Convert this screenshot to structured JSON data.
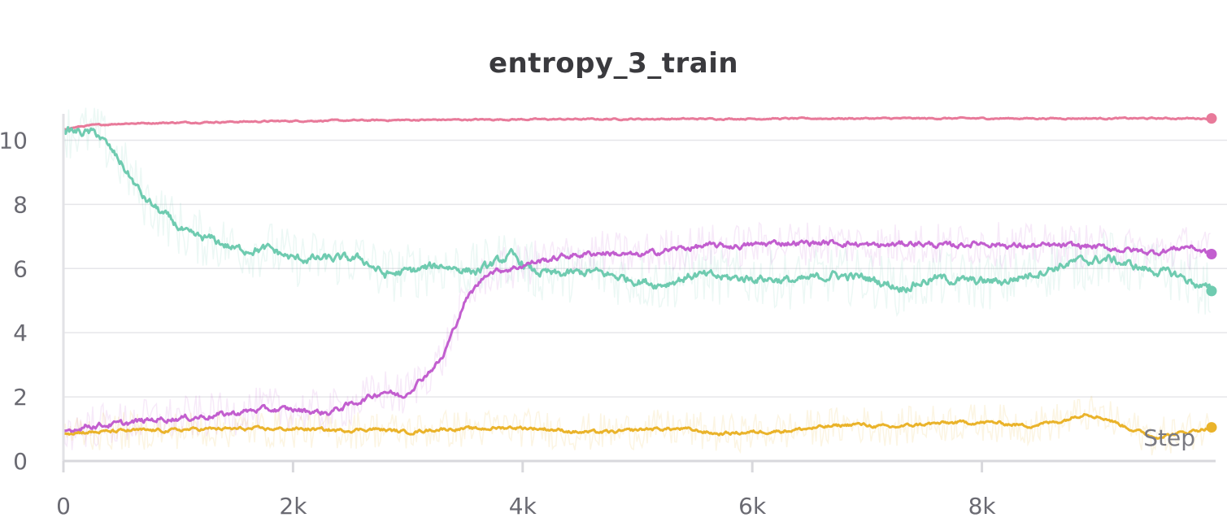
{
  "chart_data": {
    "type": "line",
    "title": "entropy_3_train",
    "xlabel": "Step",
    "ylabel": "",
    "xlim": [
      0,
      10000
    ],
    "ylim": [
      0,
      11
    ],
    "x_ticks": [
      0,
      2000,
      4000,
      6000,
      8000
    ],
    "x_tick_labels": [
      "0",
      "2k",
      "4k",
      "6k",
      "8k"
    ],
    "y_ticks": [
      0,
      2,
      4,
      6,
      8,
      10
    ],
    "y_tick_labels": [
      "0",
      "2",
      "4",
      "6",
      "8",
      "10"
    ],
    "grid": true,
    "legend": "none",
    "series": [
      {
        "color": "#e87a9a",
        "x": [
          0,
          200,
          500,
          1000,
          2000,
          3000,
          4000,
          5000,
          6000,
          7000,
          8000,
          9000,
          10000
        ],
        "values": [
          10.35,
          10.45,
          10.52,
          10.55,
          10.6,
          10.63,
          10.65,
          10.66,
          10.67,
          10.68,
          10.68,
          10.68,
          10.68
        ]
      },
      {
        "color": "#6fcbb0",
        "x": [
          0,
          300,
          500,
          700,
          900,
          1100,
          1300,
          1500,
          1800,
          2000,
          2300,
          2600,
          2800,
          3000,
          3300,
          3600,
          3900,
          4100,
          4300,
          4600,
          4900,
          5200,
          5500,
          5800,
          6100,
          6400,
          6700,
          7000,
          7300,
          7600,
          7900,
          8200,
          8500,
          8800,
          9100,
          9400,
          9700,
          10000
        ],
        "values": [
          10.3,
          10.2,
          9.3,
          8.2,
          7.6,
          7.0,
          6.9,
          6.6,
          6.6,
          6.3,
          6.3,
          6.3,
          5.8,
          5.9,
          6.1,
          5.9,
          6.4,
          5.9,
          5.8,
          5.9,
          5.7,
          5.5,
          5.8,
          5.7,
          5.7,
          5.6,
          5.8,
          5.7,
          5.4,
          5.7,
          5.6,
          5.6,
          5.9,
          6.2,
          6.3,
          6.0,
          5.8,
          5.3
        ]
      },
      {
        "color": "#c25ecf",
        "x": [
          0,
          200,
          500,
          800,
          1100,
          1400,
          1700,
          2000,
          2300,
          2600,
          2800,
          2950,
          3100,
          3300,
          3500,
          3700,
          3900,
          4100,
          4400,
          4700,
          5000,
          5300,
          5600,
          5900,
          6200,
          6500,
          6800,
          7100,
          7400,
          7700,
          8000,
          8300,
          8600,
          8900,
          9200,
          9500,
          9800,
          10000
        ],
        "values": [
          0.9,
          1.1,
          1.15,
          1.3,
          1.35,
          1.45,
          1.6,
          1.6,
          1.5,
          1.9,
          2.2,
          2.0,
          2.5,
          3.2,
          5.0,
          5.9,
          6.0,
          6.2,
          6.4,
          6.5,
          6.4,
          6.6,
          6.7,
          6.7,
          6.8,
          6.8,
          6.8,
          6.7,
          6.8,
          6.7,
          6.8,
          6.7,
          6.7,
          6.7,
          6.6,
          6.5,
          6.7,
          6.45
        ]
      },
      {
        "color": "#eab32a",
        "x": [
          0,
          300,
          600,
          900,
          1200,
          1500,
          1800,
          2100,
          2400,
          2700,
          3000,
          3300,
          3600,
          3900,
          4200,
          4500,
          4800,
          5100,
          5400,
          5700,
          6000,
          6300,
          6600,
          6900,
          7200,
          7500,
          7800,
          8100,
          8400,
          8700,
          8900,
          9100,
          9300,
          9500,
          9700,
          10000
        ],
        "values": [
          0.9,
          0.9,
          0.95,
          0.95,
          1.0,
          1.0,
          1.0,
          1.0,
          0.95,
          1.0,
          0.9,
          1.0,
          1.0,
          1.05,
          1.0,
          0.9,
          0.9,
          1.0,
          1.0,
          0.85,
          0.9,
          0.95,
          1.05,
          1.15,
          1.05,
          1.15,
          1.2,
          1.2,
          1.1,
          1.25,
          1.5,
          1.3,
          1.0,
          0.75,
          0.85,
          1.05
        ]
      }
    ]
  }
}
